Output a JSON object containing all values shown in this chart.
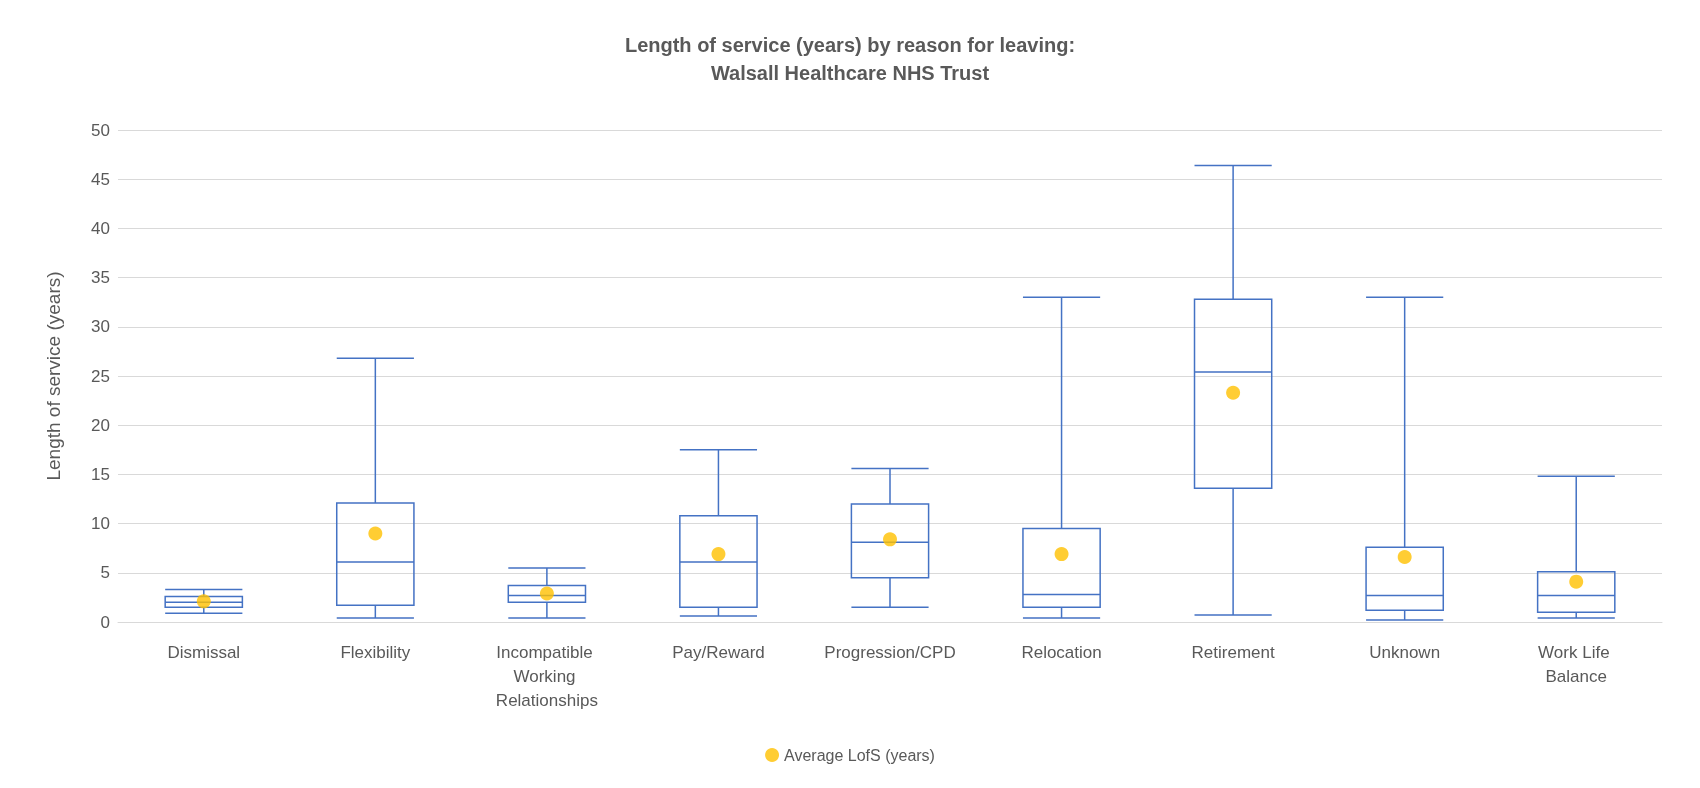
{
  "chart_data": {
    "type": "box",
    "title": "Length of service (years) by reason for leaving:\nWalsall Healthcare NHS Trust",
    "ylabel": "Length of service (years)",
    "categories": [
      "Dismissal",
      "Flexibility",
      "Incompatible Working Relationships",
      "Pay/Reward",
      "Progression/CPD",
      "Relocation",
      "Retirement",
      "Unknown",
      "Work Life Balance"
    ],
    "ylim": [
      0,
      50
    ],
    "yticks": [
      0,
      5,
      10,
      15,
      20,
      25,
      30,
      35,
      40,
      45,
      50
    ],
    "grid": "y",
    "legend": "bottom",
    "series": [
      {
        "color": "#4472c4",
        "boxes": [
          {
            "low": 0.9,
            "q1": 1.5,
            "median": 2.0,
            "q3": 2.6,
            "high": 3.3
          },
          {
            "low": 0.4,
            "q1": 1.7,
            "median": 6.1,
            "q3": 12.1,
            "high": 26.8
          },
          {
            "low": 0.4,
            "q1": 2.0,
            "median": 2.7,
            "q3": 3.7,
            "high": 5.5
          },
          {
            "low": 0.6,
            "q1": 1.5,
            "median": 6.1,
            "q3": 10.8,
            "high": 17.5
          },
          {
            "low": 1.5,
            "q1": 4.5,
            "median": 8.1,
            "q3": 12.0,
            "high": 15.6
          },
          {
            "low": 0.4,
            "q1": 1.5,
            "median": 2.8,
            "q3": 9.5,
            "high": 33.0
          },
          {
            "low": 0.7,
            "q1": 13.6,
            "median": 25.4,
            "q3": 32.8,
            "high": 46.4
          },
          {
            "low": 0.2,
            "q1": 1.2,
            "median": 2.7,
            "q3": 7.6,
            "high": 33.0
          },
          {
            "low": 0.4,
            "q1": 1.0,
            "median": 2.7,
            "q3": 5.1,
            "high": 14.8
          }
        ]
      },
      {
        "type": "scatter",
        "name": "Average LofS (years)",
        "color": "#ffc000",
        "marker": "circle",
        "x": [
          "Dismissal",
          "Flexibility",
          "Incompatible Working Relationships",
          "Pay/Reward",
          "Progression/CPD",
          "Relocation",
          "Retirement",
          "Unknown",
          "Work Life Balance"
        ],
        "values": [
          2.1,
          9.0,
          2.9,
          6.9,
          8.4,
          6.9,
          23.3,
          6.6,
          4.1
        ]
      }
    ]
  }
}
